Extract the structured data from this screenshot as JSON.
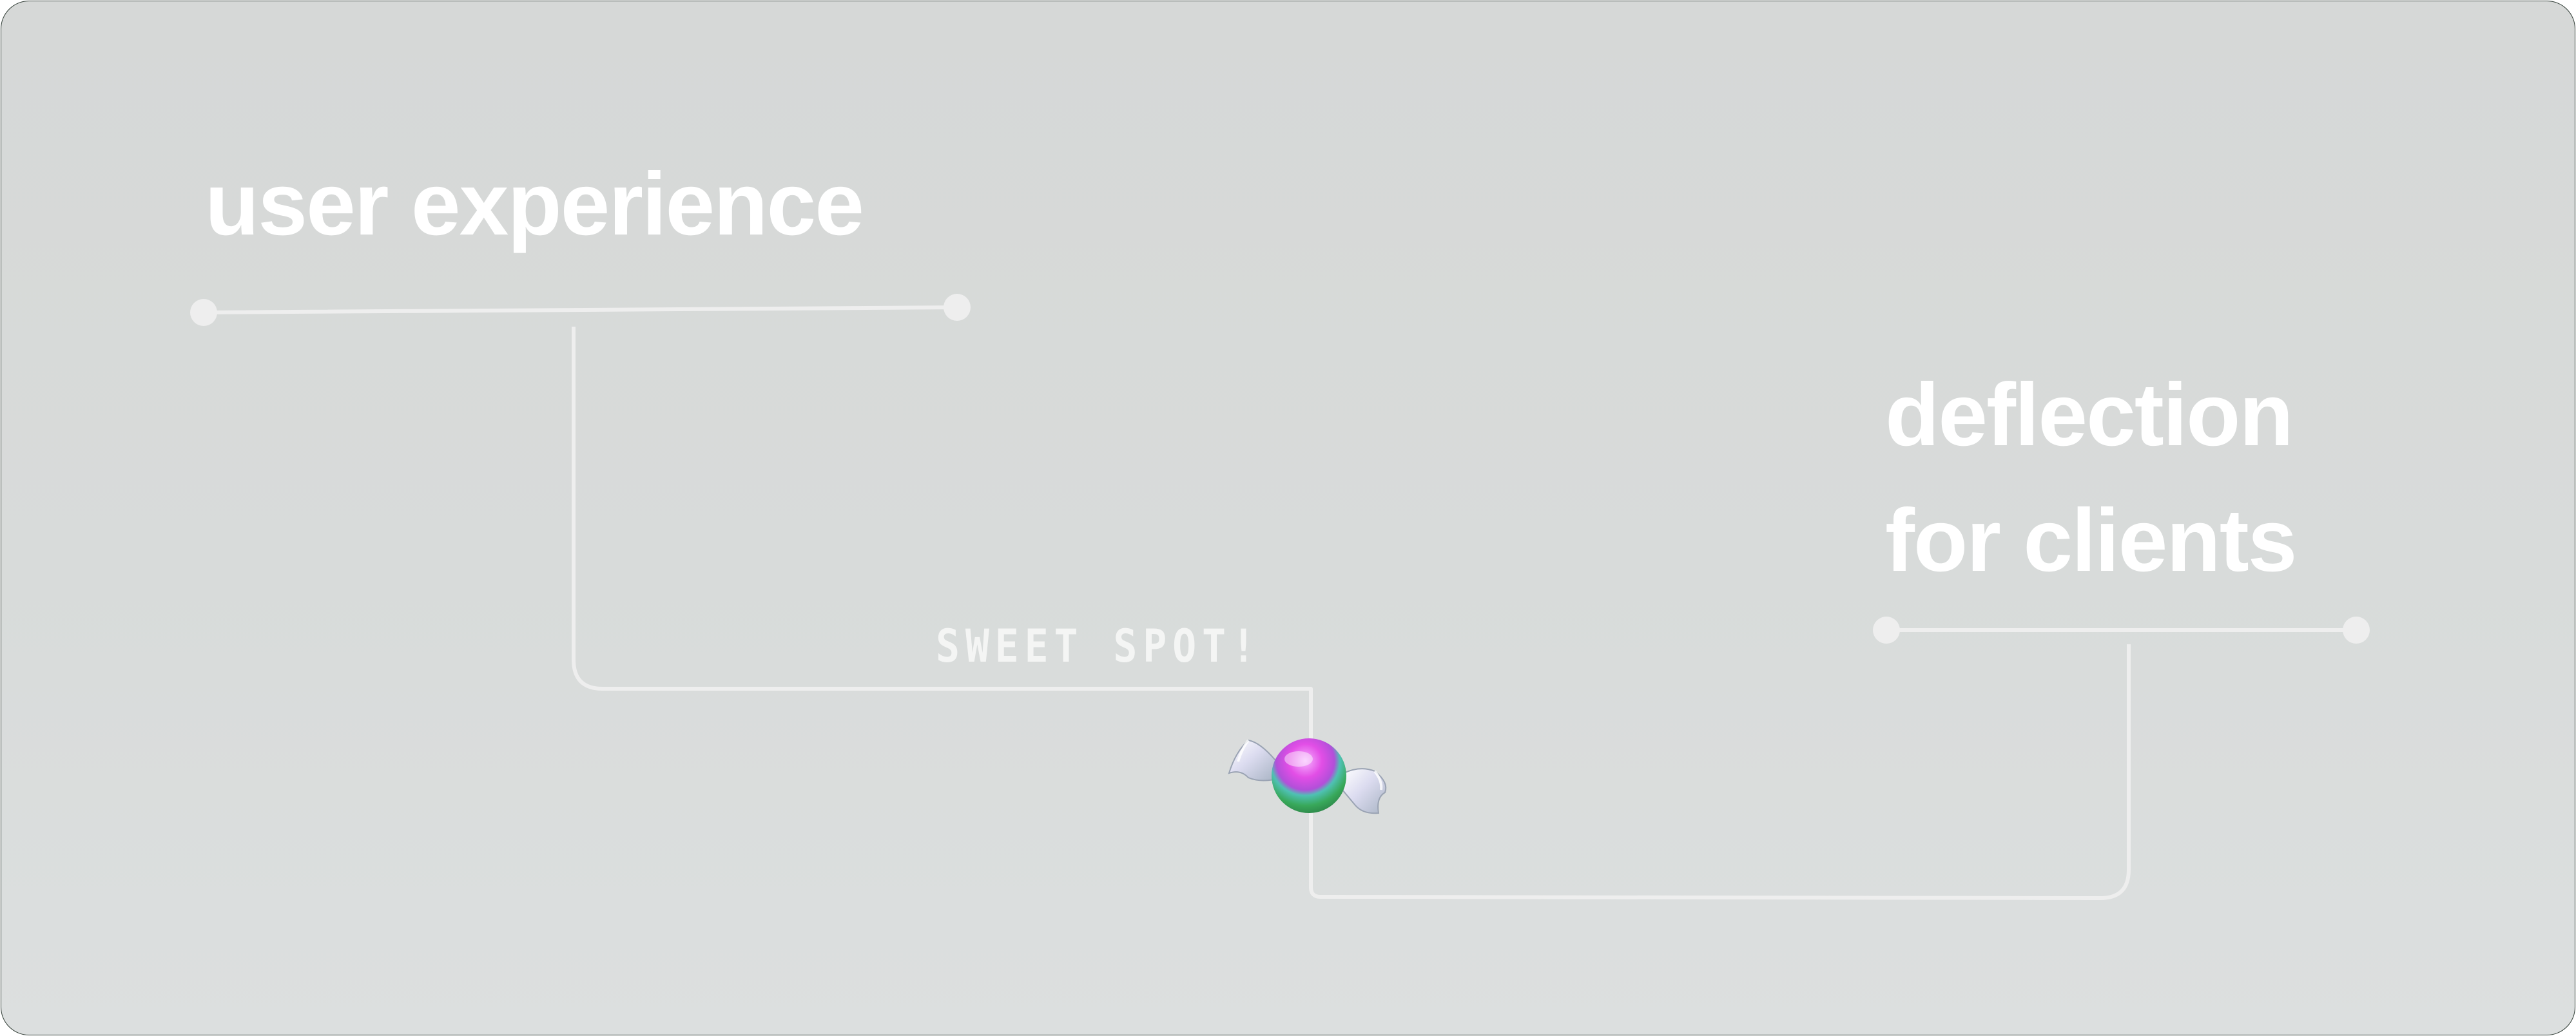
{
  "labels": {
    "left": "user experience",
    "right_line1": "deflection",
    "right_line2": "for clients"
  },
  "annotation": "SWEET SPOT!",
  "marker": {
    "icon": "candy-icon"
  },
  "colors": {
    "background": "#d7dad9",
    "text": "#ffffff",
    "line": "#eeeeee",
    "border": "#2f3b34",
    "candy_magenta": "#e24ee6",
    "candy_green": "#38a85a"
  }
}
